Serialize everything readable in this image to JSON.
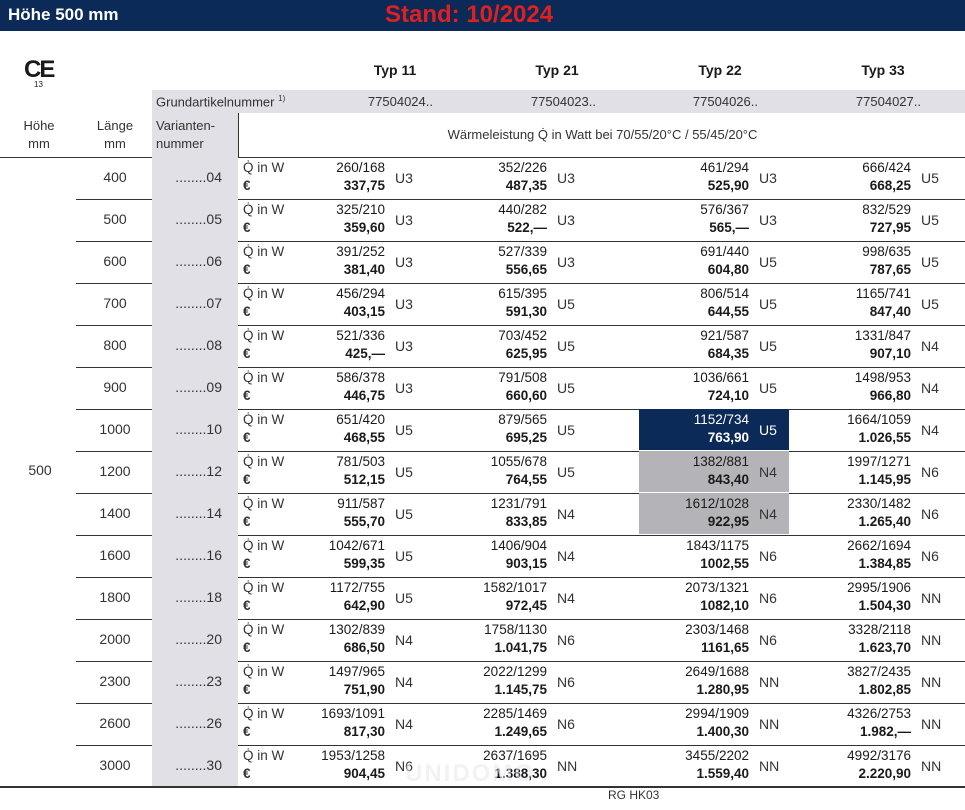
{
  "header": {
    "title": "Höhe 500 mm",
    "stand": "Stand: 10/2024",
    "ce": "CE",
    "ce_sub": "13"
  },
  "columns": {
    "types": [
      "Typ 11",
      "Typ 21",
      "Typ 22",
      "Typ 33"
    ],
    "grund_label": "Grundartikelnummer",
    "grund_footnote": "1)",
    "grund_numbers": [
      "77504024..",
      "77504023..",
      "77504026..",
      "77504027.."
    ],
    "hoehe_label": "Höhe",
    "hoehe_unit": "mm",
    "laenge_label": "Länge",
    "laenge_unit": "mm",
    "variant_label_1": "Varianten-",
    "variant_label_2": "nummer",
    "waerme_label": "Wärmeleistung Q̇ in Watt bei 70/55/20°C / 55/45/20°C",
    "q_label": "Q̇ in W",
    "euro_label": "€"
  },
  "height_value": "500",
  "rows": [
    {
      "len": "400",
      "var": "........04",
      "cells": [
        {
          "w": "260/168",
          "p": "337,75",
          "c": "U3"
        },
        {
          "w": "352/226",
          "p": "487,35",
          "c": "U3"
        },
        {
          "w": "461/294",
          "p": "525,90",
          "c": "U3"
        },
        {
          "w": "666/424",
          "p": "668,25",
          "c": "U5"
        }
      ]
    },
    {
      "len": "500",
      "var": "........05",
      "cells": [
        {
          "w": "325/210",
          "p": "359,60",
          "c": "U3"
        },
        {
          "w": "440/282",
          "p": "522,—",
          "c": "U3"
        },
        {
          "w": "576/367",
          "p": "565,—",
          "c": "U3"
        },
        {
          "w": "832/529",
          "p": "727,95",
          "c": "U5"
        }
      ]
    },
    {
      "len": "600",
      "var": "........06",
      "cells": [
        {
          "w": "391/252",
          "p": "381,40",
          "c": "U3"
        },
        {
          "w": "527/339",
          "p": "556,65",
          "c": "U3"
        },
        {
          "w": "691/440",
          "p": "604,80",
          "c": "U5"
        },
        {
          "w": "998/635",
          "p": "787,65",
          "c": "U5"
        }
      ]
    },
    {
      "len": "700",
      "var": "........07",
      "cells": [
        {
          "w": "456/294",
          "p": "403,15",
          "c": "U3"
        },
        {
          "w": "615/395",
          "p": "591,30",
          "c": "U5"
        },
        {
          "w": "806/514",
          "p": "644,55",
          "c": "U5"
        },
        {
          "w": "1165/741",
          "p": "847,40",
          "c": "U5"
        }
      ]
    },
    {
      "len": "800",
      "var": "........08",
      "cells": [
        {
          "w": "521/336",
          "p": "425,—",
          "c": "U3"
        },
        {
          "w": "703/452",
          "p": "625,95",
          "c": "U5"
        },
        {
          "w": "921/587",
          "p": "684,35",
          "c": "U5"
        },
        {
          "w": "1331/847",
          "p": "907,10",
          "c": "N4"
        }
      ]
    },
    {
      "len": "900",
      "var": "........09",
      "cells": [
        {
          "w": "586/378",
          "p": "446,75",
          "c": "U3"
        },
        {
          "w": "791/508",
          "p": "660,60",
          "c": "U5"
        },
        {
          "w": "1036/661",
          "p": "724,10",
          "c": "U5"
        },
        {
          "w": "1498/953",
          "p": "966,80",
          "c": "N4"
        }
      ]
    },
    {
      "len": "1000",
      "var": "........10",
      "cells": [
        {
          "w": "651/420",
          "p": "468,55",
          "c": "U5"
        },
        {
          "w": "879/565",
          "p": "695,25",
          "c": "U5"
        },
        {
          "w": "1152/734",
          "p": "763,90",
          "c": "U5",
          "hl": "blue"
        },
        {
          "w": "1664/1059",
          "p": "1.026,55",
          "c": "N4"
        }
      ]
    },
    {
      "len": "1200",
      "var": "........12",
      "cells": [
        {
          "w": "781/503",
          "p": "512,15",
          "c": "U5"
        },
        {
          "w": "1055/678",
          "p": "764,55",
          "c": "U5"
        },
        {
          "w": "1382/881",
          "p": "843,40",
          "c": "N4",
          "hl": "grey"
        },
        {
          "w": "1997/1271",
          "p": "1.145,95",
          "c": "N6"
        }
      ]
    },
    {
      "len": "1400",
      "var": "........14",
      "cells": [
        {
          "w": "911/587",
          "p": "555,70",
          "c": "U5"
        },
        {
          "w": "1231/791",
          "p": "833,85",
          "c": "N4"
        },
        {
          "w": "1612/1028",
          "p": "922,95",
          "c": "N4",
          "hl": "grey"
        },
        {
          "w": "2330/1482",
          "p": "1.265,40",
          "c": "N6"
        }
      ]
    },
    {
      "len": "1600",
      "var": "........16",
      "cells": [
        {
          "w": "1042/671",
          "p": "599,35",
          "c": "U5"
        },
        {
          "w": "1406/904",
          "p": "903,15",
          "c": "N4"
        },
        {
          "w": "1843/1175",
          "p": "1002,55",
          "c": "N6"
        },
        {
          "w": "2662/1694",
          "p": "1.384,85",
          "c": "N6"
        }
      ]
    },
    {
      "len": "1800",
      "var": "........18",
      "cells": [
        {
          "w": "1172/755",
          "p": "642,90",
          "c": "U5"
        },
        {
          "w": "1582/1017",
          "p": "972,45",
          "c": "N4"
        },
        {
          "w": "2073/1321",
          "p": "1082,10",
          "c": "N6"
        },
        {
          "w": "2995/1906",
          "p": "1.504,30",
          "c": "NN"
        }
      ]
    },
    {
      "len": "2000",
      "var": "........20",
      "cells": [
        {
          "w": "1302/839",
          "p": "686,50",
          "c": "N4"
        },
        {
          "w": "1758/1130",
          "p": "1.041,75",
          "c": "N6"
        },
        {
          "w": "2303/1468",
          "p": "1161,65",
          "c": "N6"
        },
        {
          "w": "3328/2118",
          "p": "1.623,70",
          "c": "NN"
        }
      ]
    },
    {
      "len": "2300",
      "var": "........23",
      "cells": [
        {
          "w": "1497/965",
          "p": "751,90",
          "c": "N4"
        },
        {
          "w": "2022/1299",
          "p": "1.145,75",
          "c": "N6"
        },
        {
          "w": "2649/1688",
          "p": "1.280,95",
          "c": "NN"
        },
        {
          "w": "3827/2435",
          "p": "1.802,85",
          "c": "NN"
        }
      ]
    },
    {
      "len": "2600",
      "var": "........26",
      "cells": [
        {
          "w": "1693/1091",
          "p": "817,30",
          "c": "N4"
        },
        {
          "w": "2285/1469",
          "p": "1.249,65",
          "c": "N6"
        },
        {
          "w": "2994/1909",
          "p": "1.400,30",
          "c": "NN"
        },
        {
          "w": "4326/2753",
          "p": "1.982,—",
          "c": "NN"
        }
      ]
    },
    {
      "len": "3000",
      "var": "........30",
      "cells": [
        {
          "w": "1953/1258",
          "p": "904,45",
          "c": "N6"
        },
        {
          "w": "2637/1695",
          "p": "1.388,30",
          "c": "NN"
        },
        {
          "w": "3455/2202",
          "p": "1.559,40",
          "c": "NN"
        },
        {
          "w": "4992/3176",
          "p": "2.220,90",
          "c": "NN"
        }
      ]
    }
  ],
  "footer": "RG HK03",
  "watermark": "UNIDOMO",
  "colors": {
    "title_bg": "#0b2a57",
    "stand": "#e02020",
    "highlight_blue": "#0b2a57",
    "highlight_grey": "#b4b4b8",
    "variant_bg": "#e0e0e6"
  }
}
